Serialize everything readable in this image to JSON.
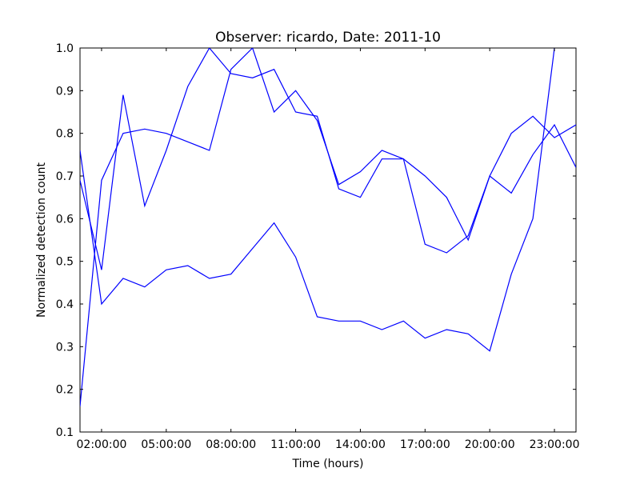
{
  "chart_data": {
    "type": "line",
    "title": "Observer: ricardo, Date: 2011-10",
    "xlabel": "Time (hours)",
    "ylabel": "Normalized detection count",
    "xlim": [
      1,
      24
    ],
    "ylim": [
      0.1,
      1.0
    ],
    "grid": false,
    "x_ticks": [
      {
        "value": 2,
        "label": "02:00:00"
      },
      {
        "value": 5,
        "label": "05:00:00"
      },
      {
        "value": 8,
        "label": "08:00:00"
      },
      {
        "value": 11,
        "label": "11:00:00"
      },
      {
        "value": 14,
        "label": "14:00:00"
      },
      {
        "value": 17,
        "label": "17:00:00"
      },
      {
        "value": 20,
        "label": "20:00:00"
      },
      {
        "value": 23,
        "label": "23:00:00"
      }
    ],
    "y_ticks": [
      {
        "value": 0.1,
        "label": "0.1"
      },
      {
        "value": 0.2,
        "label": "0.2"
      },
      {
        "value": 0.3,
        "label": "0.3"
      },
      {
        "value": 0.4,
        "label": "0.4"
      },
      {
        "value": 0.5,
        "label": "0.5"
      },
      {
        "value": 0.6,
        "label": "0.6"
      },
      {
        "value": 0.7,
        "label": "0.7"
      },
      {
        "value": 0.8,
        "label": "0.8"
      },
      {
        "value": 0.9,
        "label": "0.9"
      },
      {
        "value": 1.0,
        "label": "1.0"
      }
    ],
    "x": [
      1,
      2,
      3,
      4,
      5,
      6,
      7,
      8,
      9,
      10,
      11,
      12,
      13,
      14,
      15,
      16,
      17,
      18,
      19,
      20,
      21,
      22,
      23,
      24
    ],
    "series": [
      {
        "color": "#0000ff",
        "values": [
          0.76,
          0.4,
          0.46,
          0.44,
          0.48,
          0.49,
          0.46,
          0.47,
          0.53,
          0.59,
          0.51,
          0.37,
          0.36,
          0.36,
          0.34,
          0.36,
          0.32,
          0.34,
          0.33,
          0.29,
          0.47,
          0.6,
          1.0,
          null
        ]
      },
      {
        "color": "#0000ff",
        "values": [
          0.69,
          0.48,
          0.89,
          0.63,
          0.76,
          0.91,
          1.0,
          0.94,
          0.93,
          0.95,
          0.85,
          0.84,
          0.67,
          0.65,
          0.74,
          0.74,
          0.54,
          0.52,
          0.56,
          0.7,
          0.66,
          0.75,
          0.82,
          0.72
        ]
      },
      {
        "color": "#0000ff",
        "values": [
          0.16,
          0.69,
          0.8,
          0.81,
          0.8,
          0.78,
          0.76,
          0.95,
          1.0,
          0.85,
          0.9,
          0.83,
          0.68,
          0.71,
          0.76,
          0.74,
          0.7,
          0.65,
          0.55,
          0.7,
          0.8,
          0.84,
          0.79,
          0.82
        ]
      }
    ]
  }
}
